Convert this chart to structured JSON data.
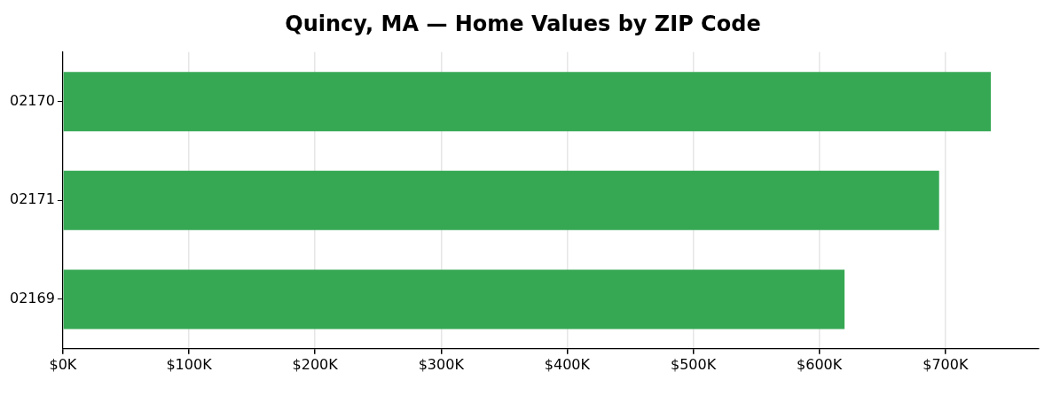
{
  "chart_data": {
    "type": "bar",
    "orientation": "horizontal",
    "title": "Quincy, MA — Home Values by ZIP Code",
    "categories": [
      "02170",
      "02171",
      "02169"
    ],
    "values": [
      736000,
      695000,
      620000
    ],
    "color": "#36a854",
    "xlim": [
      0,
      774000
    ],
    "xticks": [
      {
        "value": 0,
        "label": "$0K"
      },
      {
        "value": 100000,
        "label": "$100K"
      },
      {
        "value": 200000,
        "label": "$200K"
      },
      {
        "value": 300000,
        "label": "$300K"
      },
      {
        "value": 400000,
        "label": "$400K"
      },
      {
        "value": 500000,
        "label": "$500K"
      },
      {
        "value": 600000,
        "label": "$600K"
      },
      {
        "value": 700000,
        "label": "$700K"
      }
    ],
    "grid": "x",
    "legend": false
  }
}
